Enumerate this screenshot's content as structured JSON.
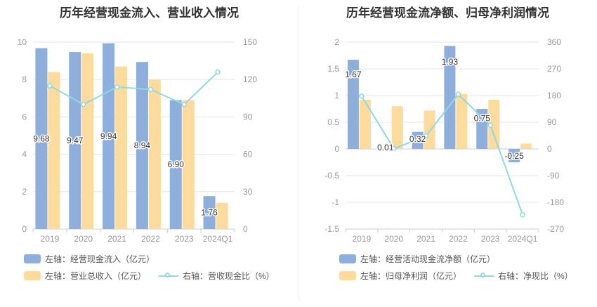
{
  "colors": {
    "bar1": "#8eaedc",
    "bar2": "#fddb9c",
    "line": "#8fd9e0",
    "grid": "#e6e6e6",
    "axis": "#999999"
  },
  "chart_data": [
    {
      "type": "bar",
      "title": "历年经营现金流入、营业收入情况",
      "categories": [
        "2019",
        "2020",
        "2021",
        "2022",
        "2023",
        "2024Q1"
      ],
      "left_axis": {
        "min": 0,
        "max": 10,
        "ticks": [
          "0",
          "2",
          "4",
          "6",
          "8",
          "10"
        ]
      },
      "right_axis": {
        "min": 0,
        "max": 150,
        "ticks": [
          "0",
          "30",
          "60",
          "90",
          "120",
          "150"
        ]
      },
      "series": [
        {
          "name": "左轴：经营现金流入（亿元）",
          "axis": "left",
          "kind": "bar",
          "values": [
            9.68,
            9.47,
            9.94,
            8.94,
            6.9,
            1.76
          ],
          "labels": [
            "9.68",
            "9.47",
            "9.94",
            "8.94",
            "6.90",
            "1.76"
          ]
        },
        {
          "name": "左轴：营业总收入（亿元）",
          "axis": "left",
          "kind": "bar",
          "values": [
            8.4,
            9.4,
            8.7,
            8.0,
            6.9,
            1.4
          ]
        },
        {
          "name": "右轴：营收现金比（%）",
          "axis": "right",
          "kind": "line",
          "values": [
            115,
            100,
            114,
            112,
            100,
            126
          ]
        }
      ]
    },
    {
      "type": "bar",
      "title": "历年经营现金流净额、归母净利润情况",
      "categories": [
        "2019",
        "2020",
        "2021",
        "2022",
        "2023",
        "2024Q1"
      ],
      "left_axis": {
        "min": -1.5,
        "max": 2,
        "ticks": [
          "-1.5",
          "-1",
          "-0.5",
          "0",
          "0.5",
          "1",
          "1.5",
          "2"
        ]
      },
      "right_axis": {
        "min": -270,
        "max": 360,
        "ticks": [
          "-270",
          "-180",
          "-90",
          "0",
          "90",
          "180",
          "270",
          "360"
        ]
      },
      "series": [
        {
          "name": "左轴：经营活动现金流净额（亿元）",
          "axis": "left",
          "kind": "bar",
          "values": [
            1.67,
            0.01,
            0.32,
            1.93,
            0.75,
            -0.25
          ],
          "labels": [
            "1.67",
            "0.01",
            "0.32",
            "1.93",
            "0.75",
            "-0.25"
          ]
        },
        {
          "name": "左轴：归母净利润（亿元）",
          "axis": "left",
          "kind": "bar",
          "values": [
            0.92,
            0.8,
            0.72,
            1.03,
            0.92,
            0.1
          ]
        },
        {
          "name": "右轴：净现比（%）",
          "axis": "right",
          "kind": "line",
          "values": [
            178,
            1,
            44,
            184,
            80,
            -222
          ]
        }
      ]
    }
  ]
}
